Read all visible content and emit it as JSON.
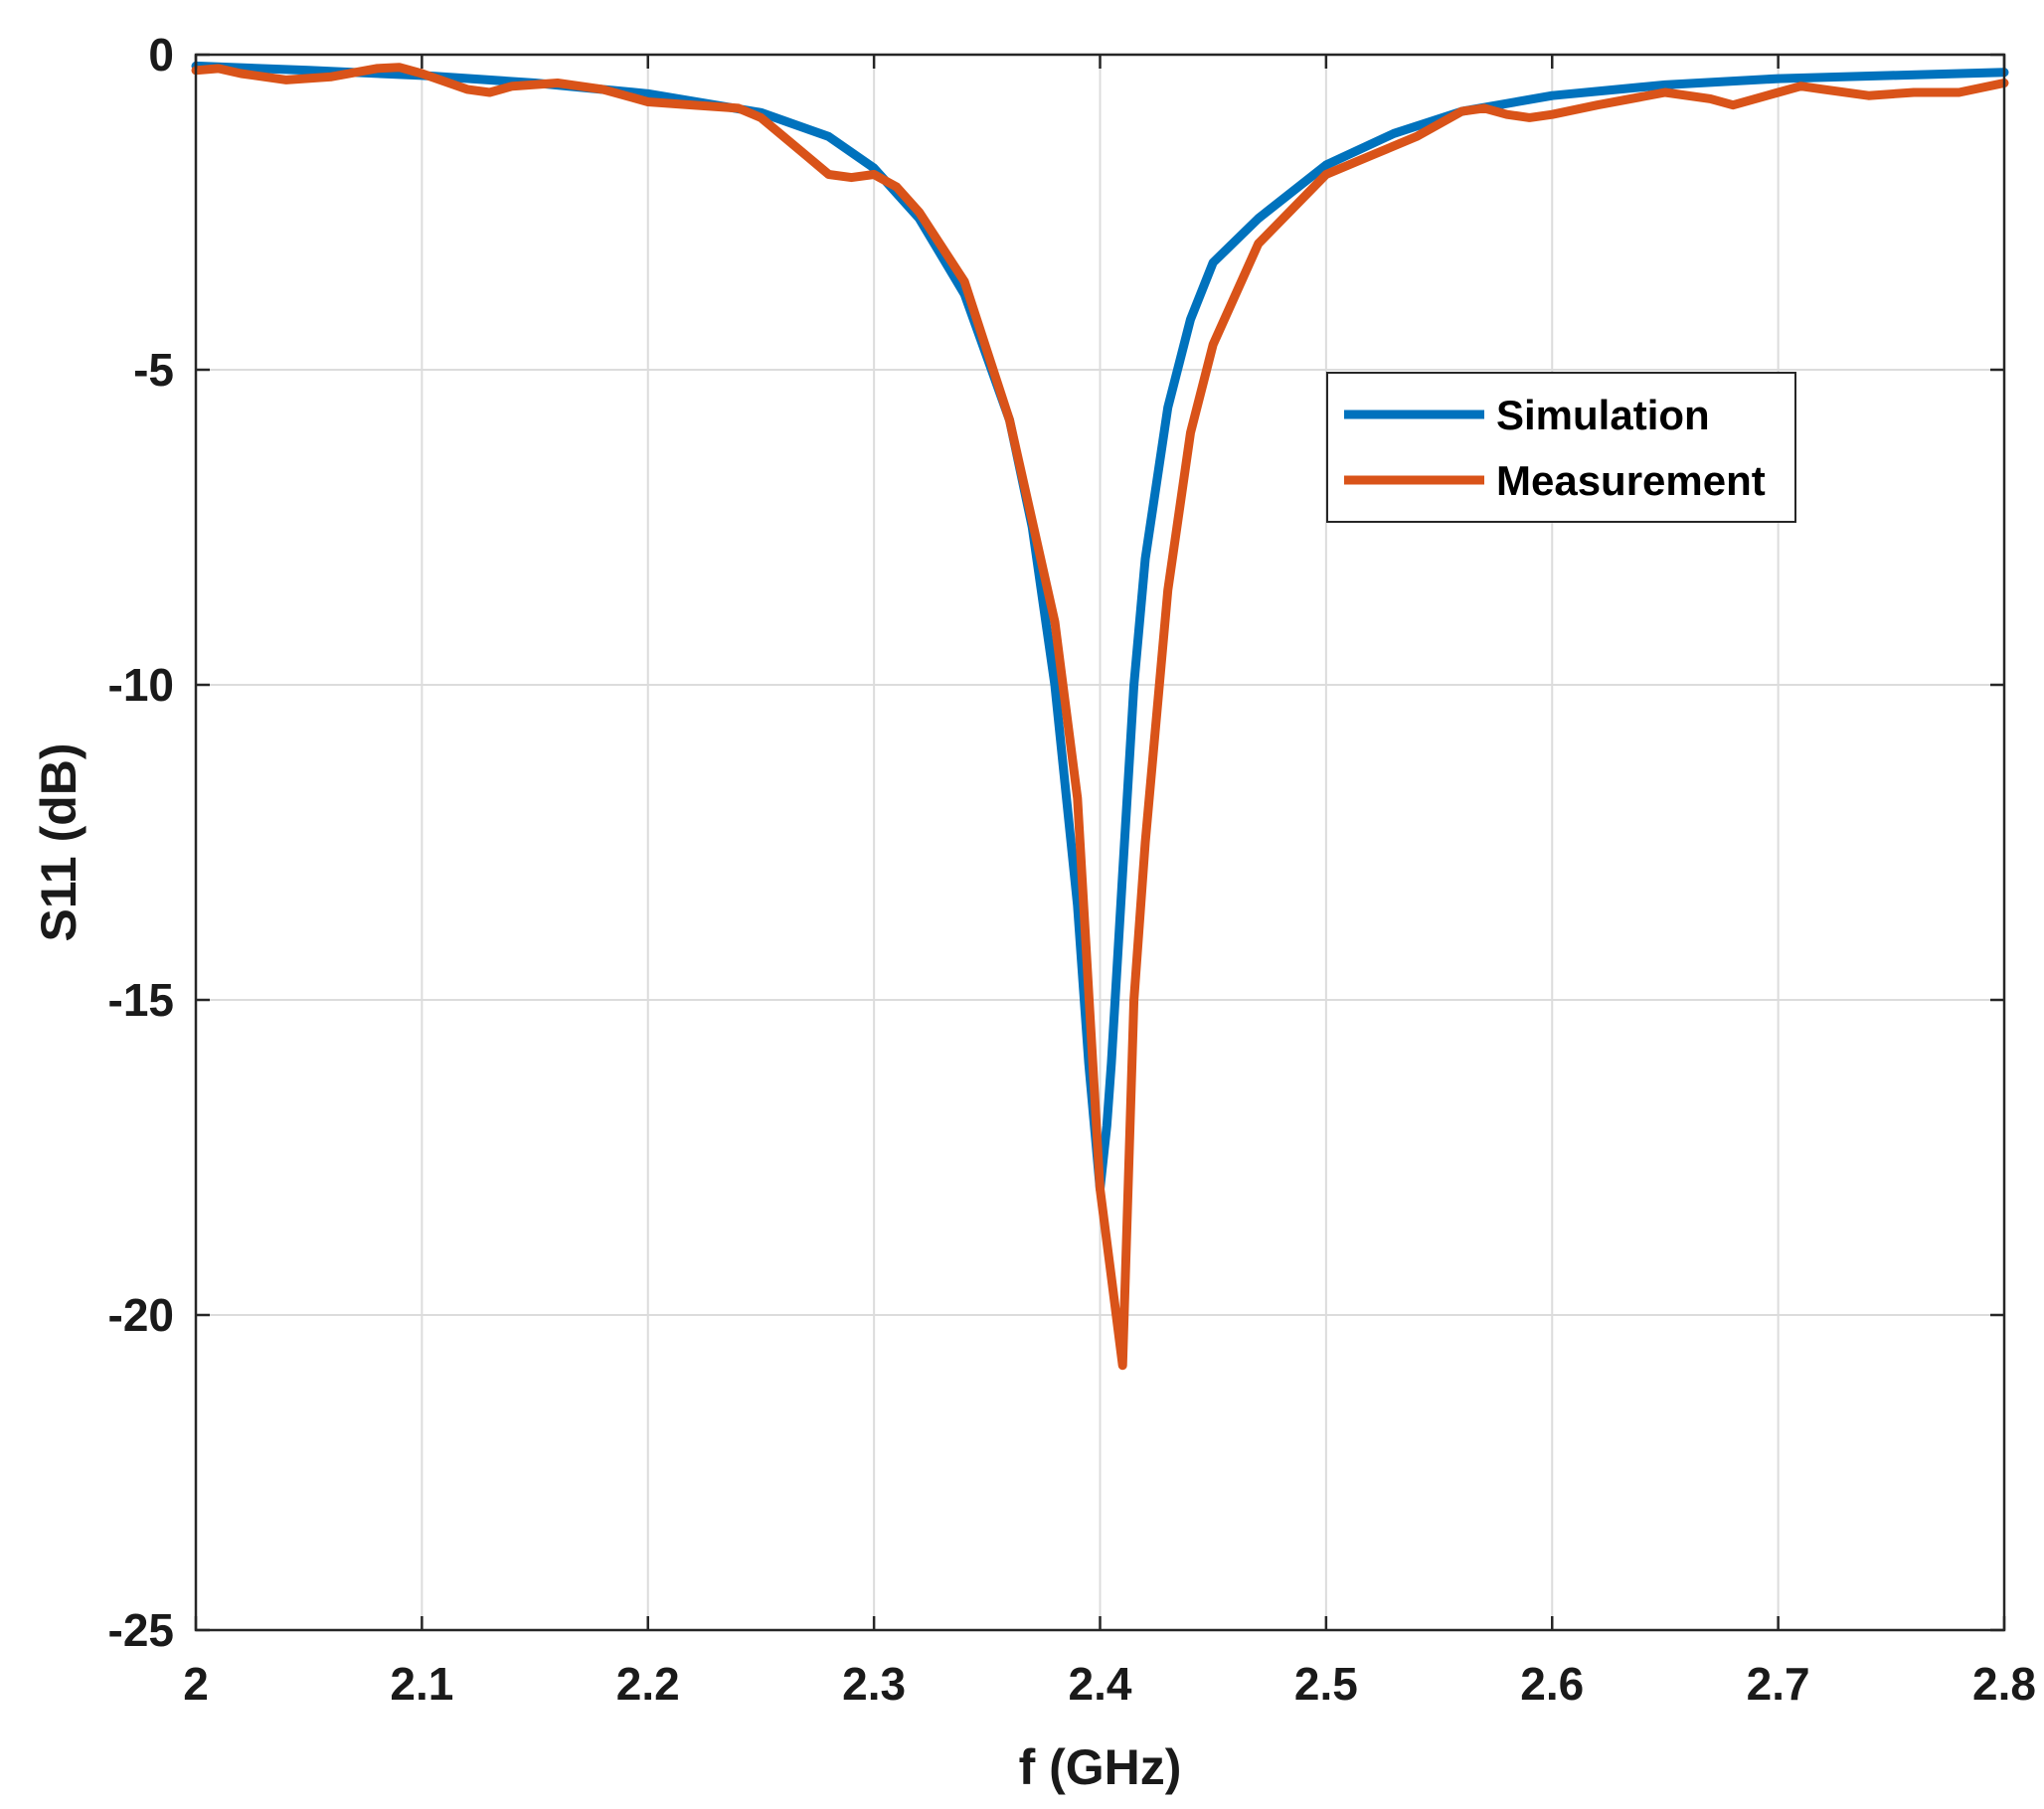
{
  "chart_data": {
    "type": "line",
    "title": "",
    "xlabel": "f (GHz)",
    "ylabel": "S11 (dB)",
    "xlim": [
      2.0,
      2.8
    ],
    "ylim": [
      -25,
      0
    ],
    "xticks": [
      2.0,
      2.1,
      2.2,
      2.3,
      2.4,
      2.5,
      2.6,
      2.7,
      2.8
    ],
    "xtick_labels": [
      "2",
      "2.1",
      "2.2",
      "2.3",
      "2.4",
      "2.5",
      "2.6",
      "2.7",
      "2.8"
    ],
    "yticks": [
      0,
      -5,
      -10,
      -15,
      -20,
      -25
    ],
    "ytick_labels": [
      "0",
      "-5",
      "-10",
      "-15",
      "-20",
      "-25"
    ],
    "grid": true,
    "legend_position": "top-right",
    "series": [
      {
        "name": "Simulation",
        "color": "#0072BD",
        "x": [
          2.0,
          2.05,
          2.1,
          2.15,
          2.2,
          2.25,
          2.28,
          2.3,
          2.32,
          2.34,
          2.36,
          2.37,
          2.38,
          2.39,
          2.395,
          2.4,
          2.403,
          2.405,
          2.41,
          2.415,
          2.42,
          2.43,
          2.44,
          2.45,
          2.47,
          2.5,
          2.53,
          2.56,
          2.6,
          2.65,
          2.7,
          2.75,
          2.8
        ],
        "y": [
          -0.18,
          -0.25,
          -0.33,
          -0.45,
          -0.62,
          -0.92,
          -1.3,
          -1.8,
          -2.6,
          -3.8,
          -5.8,
          -7.5,
          -10.0,
          -13.5,
          -16.0,
          -18.0,
          -17.0,
          -16.0,
          -13.0,
          -10.0,
          -8.0,
          -5.6,
          -4.2,
          -3.3,
          -2.6,
          -1.75,
          -1.25,
          -0.9,
          -0.65,
          -0.48,
          -0.38,
          -0.33,
          -0.28
        ]
      },
      {
        "name": "Measurement",
        "color": "#D95319",
        "x": [
          2.0,
          2.01,
          2.02,
          2.04,
          2.06,
          2.08,
          2.09,
          2.1,
          2.12,
          2.13,
          2.14,
          2.16,
          2.18,
          2.2,
          2.22,
          2.24,
          2.25,
          2.27,
          2.28,
          2.29,
          2.3,
          2.31,
          2.32,
          2.34,
          2.36,
          2.37,
          2.38,
          2.39,
          2.4,
          2.405,
          2.41,
          2.415,
          2.42,
          2.43,
          2.44,
          2.45,
          2.47,
          2.5,
          2.52,
          2.54,
          2.56,
          2.57,
          2.58,
          2.59,
          2.6,
          2.62,
          2.65,
          2.67,
          2.68,
          2.7,
          2.71,
          2.72,
          2.74,
          2.76,
          2.78,
          2.8
        ],
        "y": [
          -0.25,
          -0.22,
          -0.3,
          -0.4,
          -0.35,
          -0.22,
          -0.2,
          -0.3,
          -0.55,
          -0.6,
          -0.5,
          -0.45,
          -0.55,
          -0.75,
          -0.8,
          -0.85,
          -1.0,
          -1.6,
          -1.9,
          -1.95,
          -1.9,
          -2.1,
          -2.5,
          -3.6,
          -5.8,
          -7.4,
          -9.0,
          -11.8,
          -18.0,
          -19.4,
          -20.8,
          -15.0,
          -12.5,
          -8.5,
          -6.0,
          -4.6,
          -3.0,
          -1.9,
          -1.6,
          -1.3,
          -0.9,
          -0.85,
          -0.95,
          -1.0,
          -0.95,
          -0.8,
          -0.6,
          -0.7,
          -0.8,
          -0.6,
          -0.5,
          -0.55,
          -0.65,
          -0.6,
          -0.6,
          -0.45
        ]
      }
    ]
  }
}
